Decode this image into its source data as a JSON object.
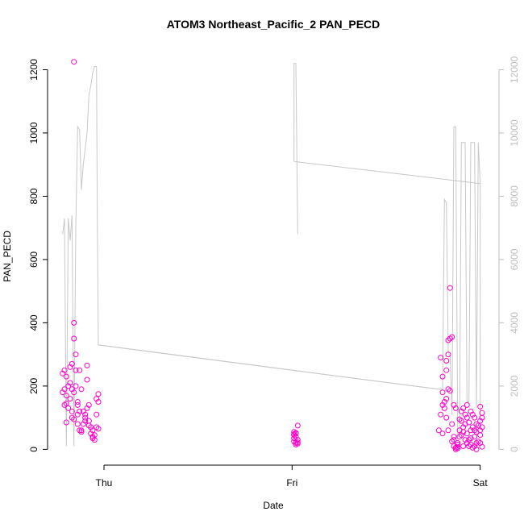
{
  "chart_data": {
    "type": "scatter",
    "title": "ATOM3 Northeast_Pacific_2 PAN_PECD",
    "xlabel": "Date",
    "ylabel": "PAN_PECD",
    "x_ticks": [
      {
        "value": 1.0,
        "label": "Thu"
      },
      {
        "value": 2.0,
        "label": "Fri"
      },
      {
        "value": 3.0,
        "label": "Sat"
      }
    ],
    "xlim": [
      0.7,
      3.1
    ],
    "ylim": [
      -50,
      1270
    ],
    "y_ticks": [
      0,
      200,
      400,
      600,
      800,
      1000,
      1200
    ],
    "y2lim": [
      -500,
      12700
    ],
    "y2_ticks": [
      0,
      2000,
      4000,
      6000,
      8000,
      10000,
      12000
    ],
    "colors": {
      "points": "#ff00cc",
      "altitude_line": "#c8c8c8",
      "axis": "#000000",
      "right_axis": "#bdbdbd"
    },
    "series": [
      {
        "axis": "left",
        "style": "points",
        "points": [
          [
            0.78,
            240
          ],
          [
            0.78,
            180
          ],
          [
            0.79,
            250
          ],
          [
            0.79,
            190
          ],
          [
            0.79,
            140
          ],
          [
            0.8,
            230
          ],
          [
            0.8,
            170
          ],
          [
            0.8,
            85
          ],
          [
            0.81,
            200
          ],
          [
            0.81,
            130
          ],
          [
            0.82,
            260
          ],
          [
            0.82,
            210
          ],
          [
            0.82,
            160
          ],
          [
            0.83,
            270
          ],
          [
            0.83,
            190
          ],
          [
            0.83,
            120
          ],
          [
            0.84,
            1225
          ],
          [
            0.84,
            400
          ],
          [
            0.84,
            350
          ],
          [
            0.84,
            180
          ],
          [
            0.85,
            300
          ],
          [
            0.85,
            250
          ],
          [
            0.85,
            200
          ],
          [
            0.86,
            150
          ],
          [
            0.86,
            110
          ],
          [
            0.86,
            80
          ],
          [
            0.87,
            60
          ],
          [
            0.87,
            250
          ],
          [
            0.88,
            55
          ],
          [
            0.88,
            190
          ],
          [
            0.89,
            120
          ],
          [
            0.89,
            80
          ],
          [
            0.9,
            110
          ],
          [
            0.9,
            100
          ],
          [
            0.91,
            130
          ],
          [
            0.91,
            220
          ],
          [
            0.91,
            265
          ],
          [
            0.92,
            90
          ],
          [
            0.92,
            140
          ],
          [
            0.93,
            70
          ],
          [
            0.93,
            50
          ],
          [
            0.94,
            40
          ],
          [
            0.94,
            60
          ],
          [
            0.95,
            30
          ],
          [
            0.95,
            45
          ],
          [
            0.96,
            160
          ],
          [
            0.96,
            110
          ],
          [
            0.96,
            70
          ],
          [
            0.97,
            175
          ],
          [
            0.97,
            150
          ],
          [
            0.97,
            65
          ],
          [
            0.84,
            95
          ],
          [
            0.86,
            140
          ],
          [
            0.88,
            60
          ],
          [
            0.9,
            90
          ],
          [
            0.92,
            75
          ],
          [
            0.94,
            35
          ],
          [
            0.8,
            145
          ],
          [
            0.83,
            100
          ],
          [
            0.87,
            120
          ],
          [
            2.01,
            55
          ],
          [
            2.01,
            45
          ],
          [
            2.01,
            35
          ],
          [
            2.01,
            25
          ],
          [
            2.02,
            50
          ],
          [
            2.02,
            40
          ],
          [
            2.02,
            20
          ],
          [
            2.02,
            15
          ],
          [
            2.03,
            75
          ],
          [
            2.03,
            30
          ],
          [
            2.03,
            18
          ],
          [
            2.01,
            48
          ],
          [
            2.02,
            52
          ],
          [
            2.03,
            22
          ],
          [
            2.78,
            60
          ],
          [
            2.79,
            110
          ],
          [
            2.79,
            290
          ],
          [
            2.8,
            230
          ],
          [
            2.8,
            180
          ],
          [
            2.8,
            140
          ],
          [
            2.8,
            50
          ],
          [
            2.81,
            150
          ],
          [
            2.81,
            130
          ],
          [
            2.82,
            280
          ],
          [
            2.82,
            250
          ],
          [
            2.82,
            100
          ],
          [
            2.83,
            345
          ],
          [
            2.83,
            300
          ],
          [
            2.83,
            60
          ],
          [
            2.84,
            510
          ],
          [
            2.84,
            350
          ],
          [
            2.84,
            185
          ],
          [
            2.85,
            355
          ],
          [
            2.85,
            80
          ],
          [
            2.85,
            25
          ],
          [
            2.86,
            30
          ],
          [
            2.86,
            10
          ],
          [
            2.86,
            140
          ],
          [
            2.87,
            130
          ],
          [
            2.87,
            5
          ],
          [
            2.87,
            0
          ],
          [
            2.88,
            15
          ],
          [
            2.88,
            20
          ],
          [
            2.88,
            3
          ],
          [
            2.89,
            40
          ],
          [
            2.89,
            60
          ],
          [
            2.9,
            120
          ],
          [
            2.9,
            90
          ],
          [
            2.9,
            45
          ],
          [
            2.91,
            130
          ],
          [
            2.91,
            70
          ],
          [
            2.91,
            10
          ],
          [
            2.92,
            110
          ],
          [
            2.92,
            80
          ],
          [
            2.92,
            30
          ],
          [
            2.93,
            140
          ],
          [
            2.93,
            100
          ],
          [
            2.93,
            50
          ],
          [
            2.94,
            85
          ],
          [
            2.94,
            30
          ],
          [
            2.95,
            120
          ],
          [
            2.95,
            60
          ],
          [
            2.95,
            15
          ],
          [
            2.96,
            110
          ],
          [
            2.96,
            70
          ],
          [
            2.96,
            5
          ],
          [
            2.97,
            100
          ],
          [
            2.97,
            40
          ],
          [
            2.97,
            10
          ],
          [
            2.98,
            80
          ],
          [
            2.98,
            55
          ],
          [
            2.98,
            0
          ],
          [
            2.99,
            75
          ],
          [
            2.99,
            25
          ],
          [
            3.0,
            135
          ],
          [
            3.0,
            90
          ],
          [
            3.0,
            60
          ],
          [
            3.0,
            20
          ],
          [
            3.01,
            115
          ],
          [
            3.01,
            100
          ],
          [
            3.01,
            70
          ],
          [
            3.01,
            8
          ],
          [
            2.94,
            10
          ],
          [
            2.98,
            20
          ],
          [
            2.82,
            160
          ],
          [
            2.86,
            40
          ],
          [
            2.89,
            95
          ],
          [
            2.93,
            20
          ],
          [
            2.97,
            60
          ],
          [
            3.0,
            45
          ],
          [
            2.83,
            190
          ],
          [
            2.88,
            8
          ],
          [
            2.91,
            55
          ],
          [
            2.95,
            35
          ]
        ]
      },
      {
        "axis": "right",
        "style": "line",
        "points": [
          [
            0.78,
            6800
          ],
          [
            0.79,
            7300
          ],
          [
            0.8,
            100
          ],
          [
            0.81,
            7300
          ],
          [
            0.82,
            6600
          ],
          [
            0.83,
            7400
          ],
          [
            0.84,
            100
          ],
          [
            0.85,
            7000
          ],
          [
            0.86,
            10200
          ],
          [
            0.87,
            10100
          ],
          [
            0.88,
            8200
          ],
          [
            0.89,
            9000
          ],
          [
            0.9,
            9500
          ],
          [
            0.91,
            10000
          ],
          [
            0.92,
            11200
          ],
          [
            0.93,
            11500
          ],
          [
            0.94,
            11900
          ],
          [
            0.95,
            12100
          ],
          [
            0.96,
            12100
          ],
          [
            0.965,
            7100
          ],
          [
            0.97,
            3300
          ],
          [
            2.78,
            1900
          ],
          [
            2.79,
            1900
          ],
          [
            2.8,
            1900
          ],
          [
            2.81,
            7900
          ],
          [
            2.82,
            7800
          ],
          [
            2.83,
            3100
          ],
          [
            2.84,
            2900
          ],
          [
            2.85,
            1100
          ],
          [
            2.86,
            10200
          ],
          [
            2.87,
            10200
          ],
          [
            2.88,
            500
          ],
          [
            2.89,
            500
          ],
          [
            2.9,
            9700
          ],
          [
            2.91,
            9700
          ],
          [
            2.92,
            9700
          ],
          [
            2.93,
            1500
          ],
          [
            2.94,
            1500
          ],
          [
            2.95,
            9700
          ],
          [
            2.96,
            9700
          ],
          [
            2.97,
            9700
          ],
          [
            2.98,
            1300
          ],
          [
            2.99,
            9700
          ],
          [
            3.0,
            8400
          ],
          [
            3.0,
            700
          ]
        ]
      },
      {
        "axis": "right",
        "style": "line",
        "points": [
          [
            0.97,
            3300
          ],
          [
            2.78,
            1900
          ]
        ]
      },
      {
        "axis": "right",
        "style": "line",
        "points": [
          [
            2.01,
            9100
          ],
          [
            2.01,
            12200
          ],
          [
            2.02,
            12200
          ],
          [
            2.03,
            6800
          ]
        ]
      },
      {
        "axis": "right",
        "style": "line",
        "points": [
          [
            2.01,
            9100
          ],
          [
            3.0,
            8400
          ]
        ]
      }
    ]
  }
}
